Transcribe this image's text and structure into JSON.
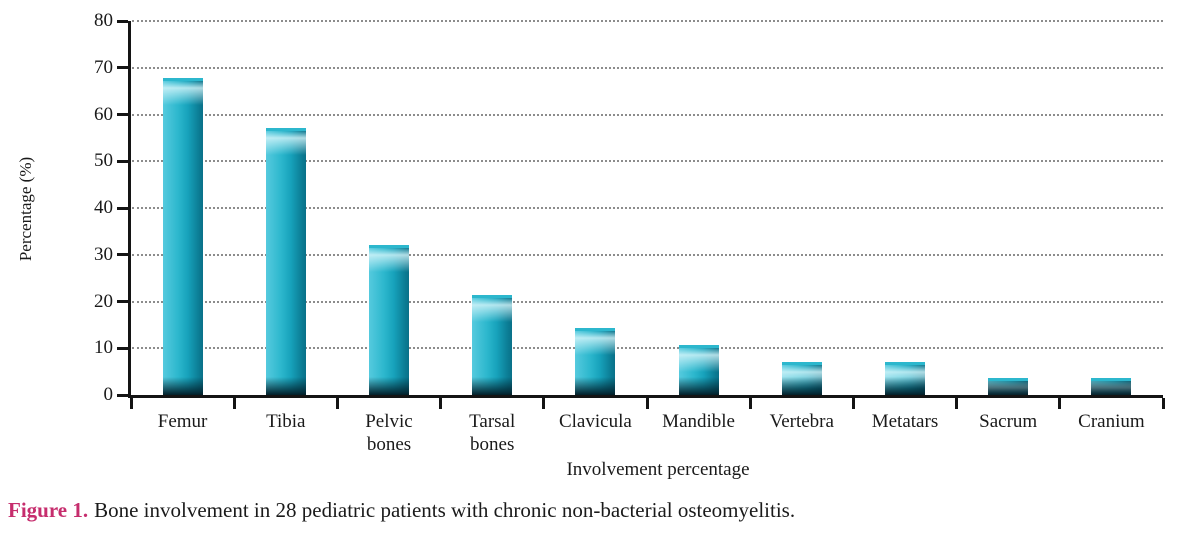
{
  "figure": {
    "caption_label": "Figure 1.",
    "caption_text": "Bone involvement in 28 pediatric patients with chronic non-bacterial osteomyelitis."
  },
  "colors": {
    "bar_main": "#2cb7cd",
    "bar_light": "#55cade",
    "bar_dark": "#0b7c94",
    "bar_bottom_shadow": "#032531",
    "axis": "#141414",
    "gridline": "#8c8c8c",
    "caption_accent": "#c62d6d",
    "text": "#1a1a1a"
  },
  "chart_data": {
    "type": "bar",
    "title": "",
    "xlabel": "Involvement percentage",
    "ylabel": "Percentage (%)",
    "categories": [
      "Femur",
      "Tibia",
      "Pelvic bones",
      "Tarsal bones",
      "Clavicula",
      "Mandible",
      "Vertebra",
      "Metatars",
      "Sacrum",
      "Cranium"
    ],
    "values": [
      67.9,
      57.1,
      32.1,
      21.4,
      14.3,
      10.7,
      7.1,
      7.1,
      3.6,
      3.6
    ],
    "ylim": [
      0,
      80
    ],
    "yticks": [
      0,
      10,
      20,
      30,
      40,
      50,
      60,
      70,
      80
    ],
    "grid": "horizontal-dotted",
    "legend": "none"
  }
}
